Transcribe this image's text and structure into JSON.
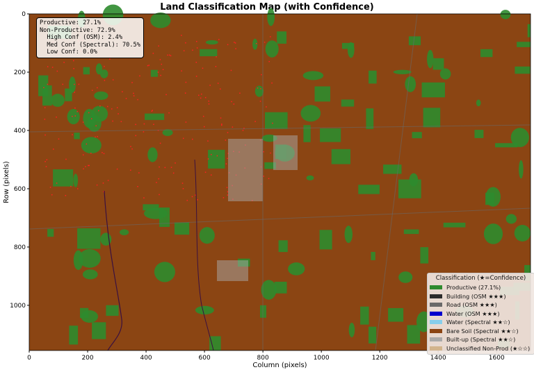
{
  "chart_data": {
    "type": "heatmap",
    "title": "Land Classification Map (with Confidence)",
    "xlabel": "Column (pixels)",
    "ylabel": "Row (pixels)",
    "xlim": [
      0,
      1716
    ],
    "ylim": [
      1155,
      0
    ],
    "x_ticks": [
      0,
      200,
      400,
      600,
      800,
      1000,
      1200,
      1400,
      1600
    ],
    "y_ticks": [
      0,
      200,
      400,
      600,
      800,
      1000
    ],
    "grid": false,
    "legend_position": "bottom-right",
    "stats": [
      "Productive: 27.1%",
      "Non-Productive: 72.9%",
      "  High Conf (OSM): 2.4%",
      "  Med Conf (Spectral): 70.5%",
      "  Low Conf: 0.0%"
    ],
    "legend": {
      "title": "Classification (★=Confidence)",
      "entries": [
        {
          "label": "Productive (27.1%)",
          "color": "#2e8b2e"
        },
        {
          "label": "Building (OSM ★★★)",
          "color": "#2b2b2b"
        },
        {
          "label": "Road (OSM ★★★)",
          "color": "#696969"
        },
        {
          "label": "Water (OSM ★★★)",
          "color": "#0000cd"
        },
        {
          "label": "Water (Spectral ★★☆)",
          "color": "#87ceeb"
        },
        {
          "label": "Bare Soil (Spectral ★★☆)",
          "color": "#8b4513"
        },
        {
          "label": "Built-up (Spectral ★★☆)",
          "color": "#a9a9a9"
        },
        {
          "label": "Unclassified Non-Prod (★☆☆)",
          "color": "#d2b48c"
        }
      ]
    },
    "productive_pct": 27.1,
    "non_productive_pct": 72.9
  }
}
